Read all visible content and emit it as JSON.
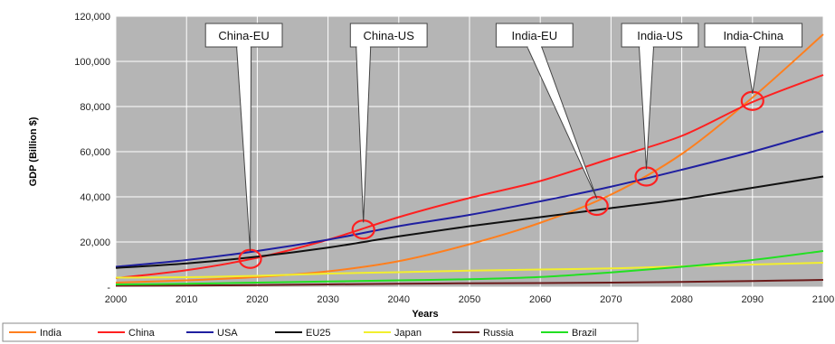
{
  "chart_data": {
    "type": "line",
    "title": "",
    "xlabel": "Years",
    "ylabel": "GDP (Billion $)",
    "xlim": [
      2000,
      2100
    ],
    "ylim": [
      0,
      120000
    ],
    "x_ticks": [
      "2000",
      "2010",
      "2020",
      "2030",
      "2040",
      "2050",
      "2060",
      "2070",
      "2080",
      "2090",
      "2100"
    ],
    "y_ticks": [
      "-",
      "20,000",
      "40,000",
      "60,000",
      "80,000",
      "100,000",
      "120,000"
    ],
    "grid": true,
    "legend_position": "bottom",
    "x": [
      2000,
      2010,
      2020,
      2030,
      2040,
      2050,
      2060,
      2070,
      2080,
      2090,
      2100
    ],
    "series": [
      {
        "name": "India",
        "color": "#ff7f1e",
        "values": [
          2000,
          3000,
          4500,
          7000,
          11500,
          19000,
          28500,
          41000,
          59000,
          84000,
          112000
        ]
      },
      {
        "name": "China",
        "color": "#ff2020",
        "values": [
          4000,
          7500,
          13000,
          21000,
          31000,
          39500,
          47000,
          57000,
          67000,
          82000,
          94000
        ]
      },
      {
        "name": "USA",
        "color": "#1f1fa0",
        "values": [
          9000,
          12000,
          16000,
          21000,
          27000,
          32000,
          38000,
          44500,
          52000,
          60000,
          69000
        ]
      },
      {
        "name": "EU25",
        "color": "#111111",
        "values": [
          8500,
          10500,
          13500,
          17500,
          22500,
          27000,
          31000,
          35000,
          39000,
          44000,
          49000
        ]
      },
      {
        "name": "Japan",
        "color": "#f2ef2e",
        "values": [
          4200,
          4400,
          5000,
          6000,
          6600,
          7300,
          7800,
          8300,
          9200,
          10000,
          10800
        ]
      },
      {
        "name": "Russia",
        "color": "#6b1a1a",
        "values": [
          600,
          700,
          900,
          1200,
          1500,
          1700,
          1800,
          2000,
          2300,
          2700,
          3200
        ]
      },
      {
        "name": "Brazil",
        "color": "#22e022",
        "values": [
          1200,
          1500,
          2000,
          2500,
          3000,
          3500,
          4500,
          6500,
          9000,
          12000,
          16000
        ]
      }
    ],
    "annotations": [
      {
        "label": "China-EU",
        "x": 2019,
        "y": 12500
      },
      {
        "label": "China-US",
        "x": 2035,
        "y": 25500
      },
      {
        "label": "India-EU",
        "x": 2068,
        "y": 36000
      },
      {
        "label": "India-US",
        "x": 2075,
        "y": 49000
      },
      {
        "label": "India-China",
        "x": 2090,
        "y": 82500
      }
    ]
  }
}
